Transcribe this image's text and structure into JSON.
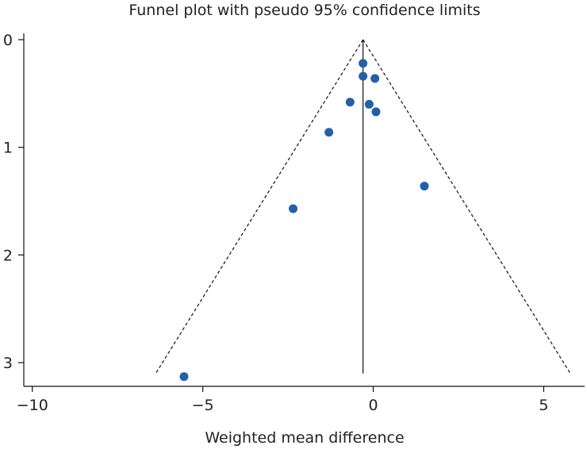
{
  "chart_data": {
    "type": "scatter",
    "title": "Funnel plot with pseudo 95% confidence limits",
    "xlabel": "Weighted mean difference",
    "ylabel": "",
    "xlim": [
      -10.25,
      6.2
    ],
    "ylim": [
      0,
      3.22
    ],
    "y_inverted": true,
    "xticks": [
      -10,
      -5,
      0,
      5
    ],
    "xtick_labels": [
      "−10",
      "−5",
      "0",
      "5"
    ],
    "yticks": [
      0,
      1,
      2,
      3
    ],
    "ytick_labels": [
      "0",
      "1",
      "2",
      "3"
    ],
    "pooled_estimate": -0.3,
    "funnel": {
      "apex": [
        -0.3,
        0
      ],
      "base_y": 3.1,
      "lower_x": -6.38,
      "upper_x": 5.78,
      "style": "dashed"
    },
    "points": [
      {
        "x": -0.3,
        "y": 0.22
      },
      {
        "x": -0.3,
        "y": 0.34
      },
      {
        "x": 0.05,
        "y": 0.36
      },
      {
        "x": -0.68,
        "y": 0.58
      },
      {
        "x": -0.12,
        "y": 0.6
      },
      {
        "x": 0.08,
        "y": 0.67
      },
      {
        "x": -1.3,
        "y": 0.86
      },
      {
        "x": 1.5,
        "y": 1.36
      },
      {
        "x": -2.35,
        "y": 1.57
      },
      {
        "x": -5.55,
        "y": 3.13
      }
    ],
    "marker_color": "#2460a7",
    "line_color": "#111111",
    "grid": false,
    "legend": "none"
  }
}
